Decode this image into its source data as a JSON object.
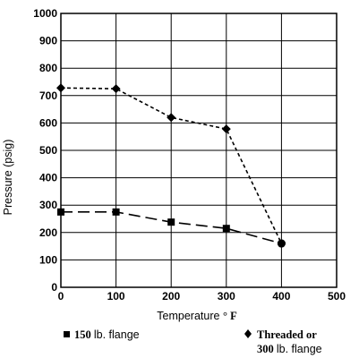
{
  "chart_data": {
    "type": "line",
    "xlabel": "Temperature",
    "xlabel_unit": "° F",
    "ylabel": "Pressure (psig)",
    "xlim": [
      0,
      500
    ],
    "ylim": [
      0,
      1000
    ],
    "xticks": [
      0,
      100,
      200,
      300,
      400,
      500
    ],
    "yticks": [
      0,
      100,
      200,
      300,
      400,
      500,
      600,
      700,
      800,
      900,
      1000
    ],
    "grid": true,
    "legend_position": "bottom",
    "series": [
      {
        "name": "150 lb. flange",
        "legend_value": "150",
        "legend_unit": "lb. flange",
        "marker": "square",
        "line_style": "long-dash",
        "color": "#000000",
        "points": [
          [
            0,
            275
          ],
          [
            100,
            275
          ],
          [
            200,
            238
          ],
          [
            300,
            215
          ],
          [
            400,
            160
          ]
        ]
      },
      {
        "name": "Threaded or 300 lb. flange",
        "legend_line1": "Threaded or",
        "legend_value": "300",
        "legend_unit": "lb. flange",
        "marker": "diamond",
        "line_style": "short-dash",
        "color": "#000000",
        "points": [
          [
            0,
            728
          ],
          [
            100,
            725
          ],
          [
            200,
            620
          ],
          [
            300,
            578
          ],
          [
            400,
            160
          ]
        ]
      }
    ]
  }
}
